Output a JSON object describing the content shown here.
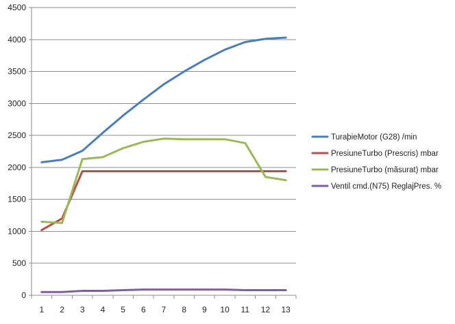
{
  "chart_data": {
    "type": "line",
    "title": "",
    "xlabel": "",
    "ylabel": "",
    "categories": [
      "1",
      "2",
      "3",
      "4",
      "5",
      "6",
      "7",
      "8",
      "9",
      "10",
      "11",
      "12",
      "13"
    ],
    "ylim": [
      0,
      4500
    ],
    "yticks": [
      0,
      500,
      1000,
      1500,
      2000,
      2500,
      3000,
      3500,
      4000,
      4500
    ],
    "grid": true,
    "legend_position": "right",
    "series": [
      {
        "name": "TuraþieMotor (G28)  /min",
        "color": "#4a7ebb",
        "values": [
          2080,
          2120,
          2260,
          2540,
          2810,
          3060,
          3300,
          3500,
          3680,
          3840,
          3960,
          4010,
          4030
        ]
      },
      {
        "name": "PresiuneTurbo (Prescris)  mbar",
        "color": "#be4b48",
        "values": [
          1020,
          1200,
          1940,
          1940,
          1940,
          1940,
          1940,
          1940,
          1940,
          1940,
          1940,
          1940,
          1940
        ]
      },
      {
        "name": "PresiuneTurbo (mãsurat)   mbar",
        "color": "#98b954",
        "values": [
          1150,
          1130,
          2130,
          2160,
          2300,
          2400,
          2450,
          2440,
          2440,
          2440,
          2380,
          1850,
          1800
        ]
      },
      {
        "name": "Ventil cmd.(N75) ReglajPres.  %",
        "color": "#7d5fa0",
        "values": [
          50,
          50,
          70,
          70,
          80,
          90,
          90,
          90,
          90,
          90,
          80,
          80,
          80
        ]
      }
    ]
  }
}
